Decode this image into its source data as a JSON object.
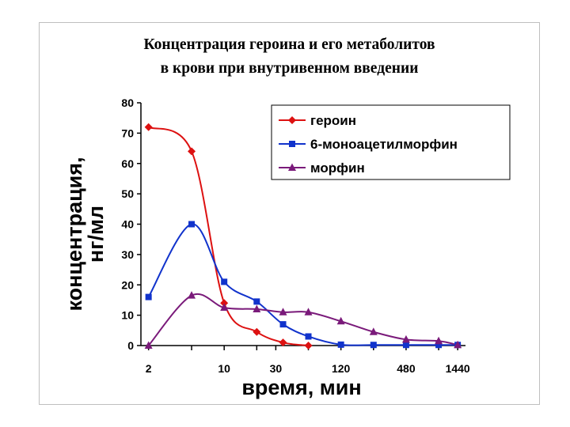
{
  "chart_data": {
    "type": "line",
    "title_lines": [
      "Концентрация героина и его метаболитов",
      "в крови при внутривенном введении"
    ],
    "xlabel": "время, мин",
    "ylabel_lines": [
      "концентрация,",
      "нг/мл"
    ],
    "x_tick_labels": [
      "2",
      "10",
      "30",
      "120",
      "480",
      "1440"
    ],
    "x_tick_values": [
      2,
      10,
      30,
      120,
      480,
      1440
    ],
    "x_scale": "log",
    "ylim": [
      0,
      80
    ],
    "y_ticks": [
      0,
      10,
      20,
      30,
      40,
      50,
      60,
      70,
      80
    ],
    "legend_position": "top-right",
    "grid": false,
    "series": [
      {
        "name": "героин",
        "color": "#dd1111",
        "marker": "diamond",
        "x": [
          2,
          5,
          10,
          20,
          35,
          60
        ],
        "y": [
          72,
          64,
          14,
          4.5,
          1,
          0
        ]
      },
      {
        "name": "6-моноацетилморфин",
        "color": "#1133cc",
        "marker": "square",
        "x": [
          2,
          5,
          10,
          20,
          35,
          60,
          120,
          240,
          480,
          960,
          1440
        ],
        "y": [
          16,
          40,
          21,
          14.5,
          7,
          3,
          0.3,
          0.2,
          0.2,
          0.2,
          0.2
        ]
      },
      {
        "name": "морфин",
        "color": "#7a1a7a",
        "marker": "triangle",
        "x": [
          2,
          5,
          10,
          20,
          35,
          60,
          120,
          240,
          480,
          960,
          1440
        ],
        "y": [
          0,
          16.5,
          12.5,
          12,
          11,
          11,
          8,
          4.5,
          2,
          1.5,
          0.2
        ]
      }
    ]
  }
}
